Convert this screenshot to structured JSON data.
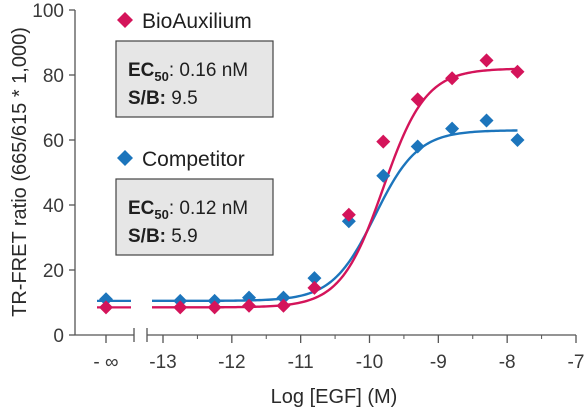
{
  "chart_data": {
    "type": "scatter",
    "xlabel": "Log [EGF] (M)",
    "ylabel": "TR-FRET ratio (665/615 * 1,000)",
    "ylim": [
      0,
      100
    ],
    "xlim": [
      -13,
      -7
    ],
    "yticks": [
      0,
      20,
      40,
      60,
      80,
      100
    ],
    "ytick_labels": [
      "0",
      "20",
      "40",
      "60",
      "80",
      "100"
    ],
    "xticks": [
      -13,
      -12,
      -11,
      -10,
      -9,
      -8,
      -7
    ],
    "xtick_labels": [
      "-13",
      "-12",
      "-11",
      "-10",
      "-9",
      "-8",
      "-7"
    ],
    "neg_inf_label": "- ∞",
    "series": [
      {
        "name": "BioAuxilium",
        "color": "#d4145a",
        "marker": "diamond",
        "neg_inf_value": 8.5,
        "x": [
          -12.75,
          -12.25,
          -11.75,
          -11.25,
          -10.8,
          -10.3,
          -9.8,
          -9.3,
          -8.8,
          -8.3,
          -7.85
        ],
        "y": [
          8.5,
          8.5,
          9.0,
          9.0,
          14.5,
          37.0,
          59.5,
          72.5,
          79.0,
          84.5,
          81.0
        ],
        "fit": {
          "bottom": 8.5,
          "top": 82.0,
          "log_ec50": -9.8,
          "hill": 1.4
        },
        "ec50_label": "EC",
        "ec50_sub": "50",
        "ec50_value": ": 0.16 nM",
        "sb_label": "S/B:",
        "sb_value": " 9.5"
      },
      {
        "name": "Competitor",
        "color": "#1c75bc",
        "marker": "diamond",
        "neg_inf_value": 11.0,
        "x": [
          -12.75,
          -12.25,
          -11.75,
          -11.25,
          -10.8,
          -10.3,
          -9.8,
          -9.3,
          -8.8,
          -8.3,
          -7.85
        ],
        "y": [
          10.5,
          10.5,
          11.5,
          11.5,
          17.5,
          35.0,
          49.0,
          58.0,
          63.5,
          66.0,
          60.0
        ],
        "fit": {
          "bottom": 10.5,
          "top": 63.0,
          "log_ec50": -9.92,
          "hill": 1.4
        },
        "ec50_label": "EC",
        "ec50_sub": "50",
        "ec50_value": ": 0.12 nM",
        "sb_label": "S/B:",
        "sb_value": " 5.9"
      }
    ]
  }
}
